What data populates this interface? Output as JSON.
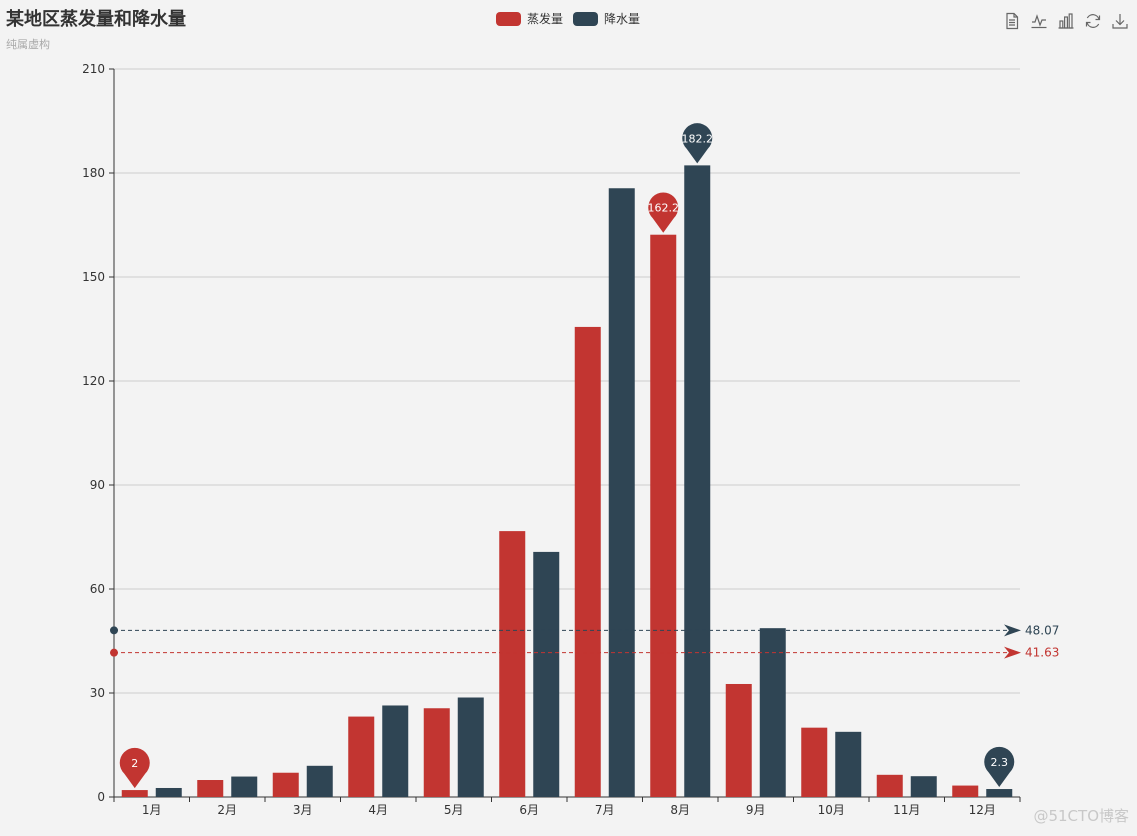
{
  "header": {
    "title": "某地区蒸发量和降水量",
    "subtitle": "纯属虚构"
  },
  "toolbox": {
    "icons": [
      "data-view-icon",
      "line-chart-icon",
      "bar-chart-icon",
      "restore-icon",
      "save-image-icon"
    ]
  },
  "watermark": "@51CTO博客",
  "chart_data": {
    "type": "bar",
    "categories": [
      "1月",
      "2月",
      "3月",
      "4月",
      "5月",
      "6月",
      "7月",
      "8月",
      "9月",
      "10月",
      "11月",
      "12月"
    ],
    "series": [
      {
        "name": "蒸发量",
        "color": "#c23531",
        "values": [
          2.0,
          4.9,
          7.0,
          23.2,
          25.6,
          76.7,
          135.6,
          162.2,
          32.6,
          20.0,
          6.4,
          3.3
        ],
        "markPoints": [
          {
            "type": "max",
            "category": "8月",
            "value": 162.2,
            "label": "162.2"
          },
          {
            "type": "min",
            "category": "1月",
            "value": 2.0,
            "label": "2"
          }
        ],
        "markLine": {
          "type": "average",
          "value": 41.63,
          "label": "41.63"
        }
      },
      {
        "name": "降水量",
        "color": "#2f4554",
        "values": [
          2.6,
          5.9,
          9.0,
          26.4,
          28.7,
          70.7,
          175.6,
          182.2,
          48.7,
          18.8,
          6.0,
          2.3
        ],
        "markPoints": [
          {
            "type": "max",
            "category": "8月",
            "value": 182.2,
            "label": "182.2"
          },
          {
            "type": "min",
            "category": "12月",
            "value": 2.3,
            "label": "2.3"
          }
        ],
        "markLine": {
          "type": "average",
          "value": 48.07,
          "label": "48.07"
        }
      }
    ],
    "yTicks": [
      "0",
      "30",
      "60",
      "90",
      "120",
      "150",
      "180",
      "210"
    ],
    "ylim": [
      0,
      210
    ],
    "grid": true,
    "legend_position": "top-center"
  }
}
